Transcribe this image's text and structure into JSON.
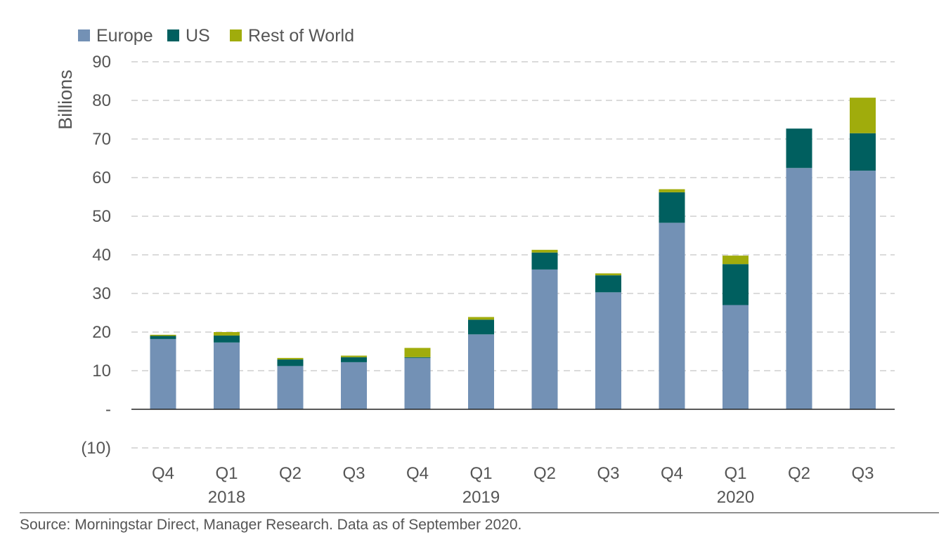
{
  "chart_data": {
    "type": "bar",
    "stacked": true,
    "title": "",
    "xlabel": "",
    "ylabel": "Billions",
    "ylim": [
      -10,
      90
    ],
    "yticks": [
      -10,
      0,
      10,
      20,
      30,
      40,
      50,
      60,
      70,
      80,
      90
    ],
    "ytick_labels": [
      "(10)",
      "-",
      "10",
      "20",
      "30",
      "40",
      "50",
      "60",
      "70",
      "80",
      "90"
    ],
    "grid": true,
    "legend_position": "top-left",
    "categories": [
      "Q4",
      "Q1",
      "Q2",
      "Q3",
      "Q4",
      "Q1",
      "Q2",
      "Q3",
      "Q4",
      "Q1",
      "Q2",
      "Q3"
    ],
    "year_labels": [
      {
        "label": "2018",
        "category_index": 1
      },
      {
        "label": "2019",
        "category_index": 5
      },
      {
        "label": "2020",
        "category_index": 9
      }
    ],
    "series": [
      {
        "name": "Europe",
        "color": "#7391b5",
        "values": [
          18.2,
          17.3,
          11.2,
          12.2,
          13.3,
          19.4,
          36.2,
          30.3,
          48.3,
          27.0,
          62.5,
          61.8
        ]
      },
      {
        "name": "US",
        "color": "#005f5f",
        "values": [
          0.8,
          1.8,
          1.7,
          1.3,
          0.2,
          3.8,
          4.4,
          4.4,
          7.9,
          10.6,
          10.2,
          9.7
        ]
      },
      {
        "name": "Rest of World",
        "color": "#a0ac0c",
        "values": [
          0.3,
          0.9,
          0.4,
          0.4,
          2.4,
          0.7,
          0.7,
          0.5,
          0.8,
          2.2,
          0.0,
          9.2
        ]
      }
    ]
  },
  "source_text": "Source: Morningstar Direct, Manager Research. Data as of September 2020."
}
